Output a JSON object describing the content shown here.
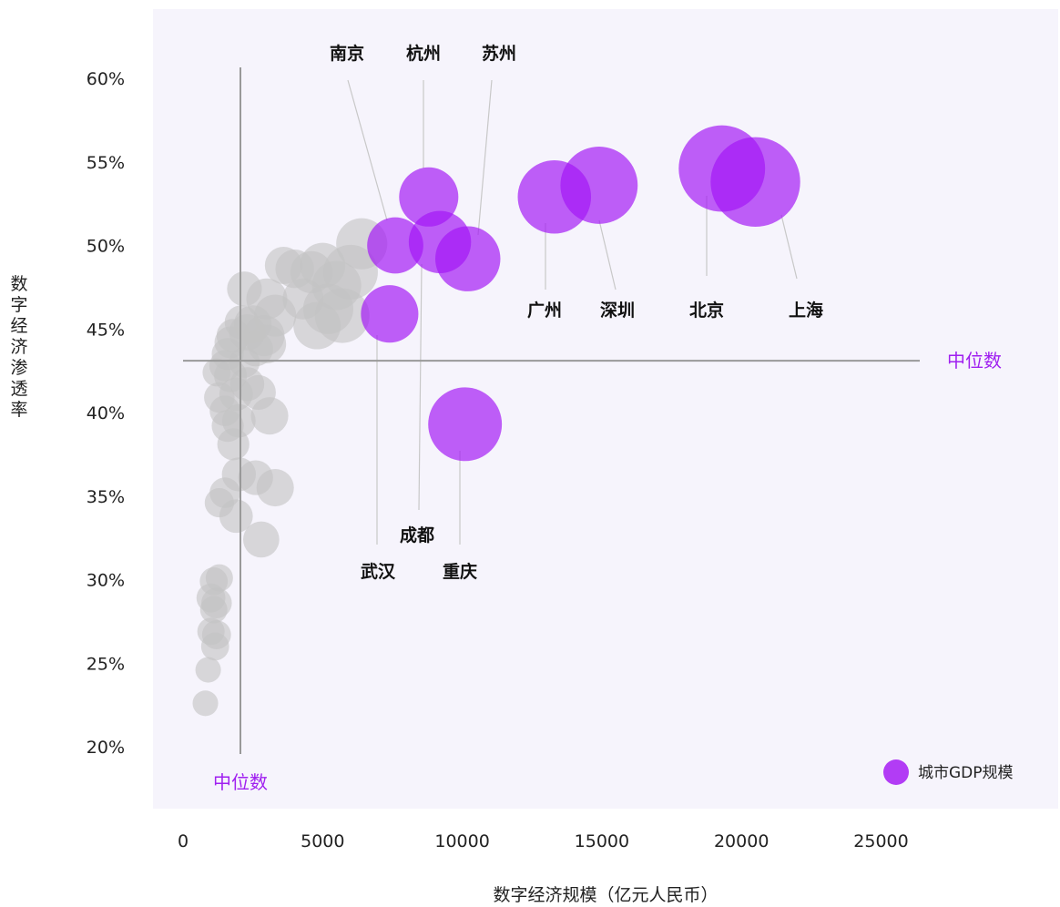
{
  "chart_data": {
    "type": "scatter",
    "title": "",
    "xlabel": "数字经济规模（亿元人民币）",
    "ylabel": "数字经济渗透率",
    "xlim": [
      0,
      30000
    ],
    "ylim": [
      18,
      62
    ],
    "x_ticks": [
      0,
      5000,
      10000,
      15000,
      20000,
      25000
    ],
    "y_ticks": [
      20,
      25,
      30,
      35,
      40,
      45,
      50,
      55,
      60
    ],
    "x_tick_labels": [
      "0",
      "5000",
      "10000",
      "15000",
      "20000",
      "25000"
    ],
    "y_tick_labels": [
      "20%",
      "25%",
      "30%",
      "35%",
      "40%",
      "45%",
      "50%",
      "55%",
      "60%"
    ],
    "grid": false,
    "legend": {
      "label": "城市GDP规模",
      "placement": "bottom-right",
      "color": "#b23cf5"
    },
    "colors": {
      "highlight": "#a214f5",
      "other": "#c4c4c4",
      "plot_bg": "#f6f4fc",
      "median_line": "#999999",
      "median_label": "#a020f0"
    },
    "medians": {
      "x": 2000,
      "y": 43.1,
      "label": "中位数"
    },
    "highlighted": [
      {
        "name": "北京",
        "x": 19300,
        "y": 54.6,
        "gdp": 40000
      },
      {
        "name": "上海",
        "x": 20500,
        "y": 53.8,
        "gdp": 43000
      },
      {
        "name": "深圳",
        "x": 14900,
        "y": 53.6,
        "gdp": 32000
      },
      {
        "name": "广州",
        "x": 13300,
        "y": 52.9,
        "gdp": 28800
      },
      {
        "name": "杭州",
        "x": 8800,
        "y": 52.9,
        "gdp": 18800
      },
      {
        "name": "南京",
        "x": 7600,
        "y": 50.0,
        "gdp": 16900
      },
      {
        "name": "成都",
        "x": 9200,
        "y": 50.2,
        "gdp": 20800
      },
      {
        "name": "苏州",
        "x": 10200,
        "y": 49.2,
        "gdp": 22700
      },
      {
        "name": "武汉",
        "x": 7400,
        "y": 45.9,
        "gdp": 17700
      },
      {
        "name": "重庆",
        "x": 10100,
        "y": 39.3,
        "gdp": 29100
      }
    ],
    "others": [
      [
        6400,
        50.1,
        14000
      ],
      [
        6000,
        48.4,
        16000
      ],
      [
        5500,
        47.6,
        13000
      ],
      [
        5000,
        48.8,
        11000
      ],
      [
        5200,
        46.2,
        13500
      ],
      [
        5700,
        45.8,
        16000
      ],
      [
        4800,
        45.2,
        12000
      ],
      [
        4300,
        46.8,
        9000
      ],
      [
        4600,
        48.4,
        9500
      ],
      [
        4000,
        48.6,
        8000
      ],
      [
        3600,
        48.8,
        7500
      ],
      [
        3000,
        46.8,
        9000
      ],
      [
        3300,
        45.8,
        9500
      ],
      [
        2900,
        44.6,
        9000
      ],
      [
        2500,
        45.3,
        7500
      ],
      [
        2200,
        47.4,
        6500
      ],
      [
        2100,
        45.4,
        6200
      ],
      [
        1800,
        44.6,
        6000
      ],
      [
        1600,
        43.5,
        5500
      ],
      [
        1500,
        42.8,
        5200
      ],
      [
        1700,
        42.2,
        5800
      ],
      [
        2300,
        41.7,
        6200
      ],
      [
        1900,
        41.1,
        6000
      ],
      [
        2700,
        41.2,
        6500
      ],
      [
        3100,
        39.8,
        7500
      ],
      [
        2000,
        39.5,
        6000
      ],
      [
        1600,
        39.2,
        5500
      ],
      [
        1800,
        38.1,
        5500
      ],
      [
        1300,
        40.9,
        5000
      ],
      [
        1500,
        40.1,
        5000
      ],
      [
        2000,
        36.3,
        6200
      ],
      [
        2600,
        36.1,
        6500
      ],
      [
        3300,
        35.5,
        7500
      ],
      [
        1500,
        35.2,
        5000
      ],
      [
        1300,
        34.6,
        4600
      ],
      [
        1900,
        33.8,
        6000
      ],
      [
        2800,
        32.4,
        7000
      ],
      [
        1100,
        29.9,
        4200
      ],
      [
        1300,
        30.1,
        4000
      ],
      [
        1000,
        28.9,
        4500
      ],
      [
        1200,
        28.6,
        5000
      ],
      [
        1100,
        28.2,
        4000
      ],
      [
        1000,
        26.9,
        4000
      ],
      [
        1200,
        26.7,
        4500
      ],
      [
        1150,
        26.0,
        4200
      ],
      [
        900,
        24.6,
        3500
      ],
      [
        800,
        22.6,
        3500
      ],
      [
        1700,
        44.2,
        5500
      ],
      [
        2200,
        43.0,
        5000
      ],
      [
        1200,
        42.4,
        4200
      ],
      [
        2600,
        43.8,
        6500
      ],
      [
        3000,
        44.1,
        8000
      ],
      [
        2300,
        44.8,
        7000
      ]
    ]
  },
  "labels": {
    "x_median": "中位数",
    "y_median": "中位数",
    "legend": "城市GDP规模"
  }
}
